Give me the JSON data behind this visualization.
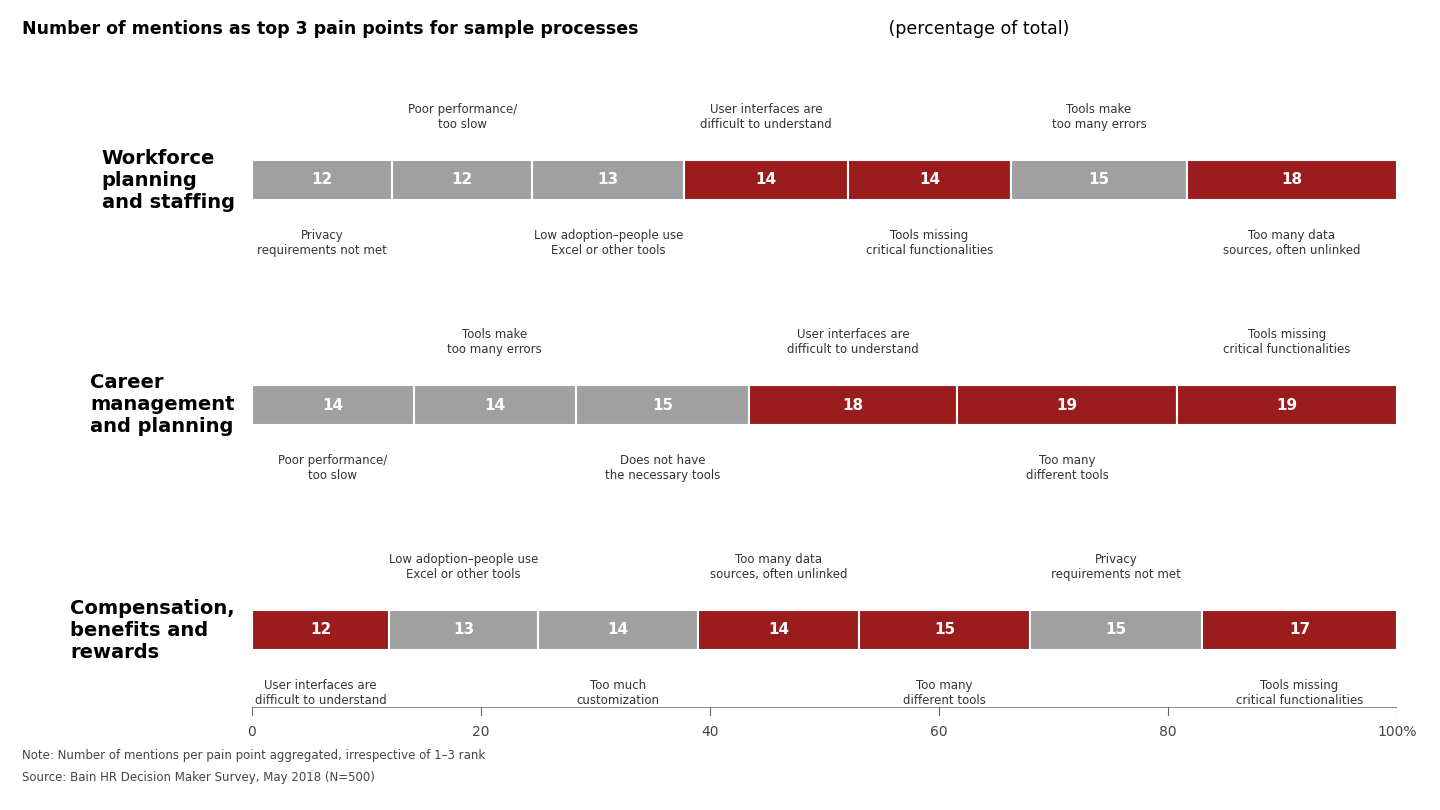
{
  "title_bold": "Number of mentions as top 3 pain points for sample processes",
  "title_normal": " (percentage of total)",
  "note": "Note: Number of mentions per pain point aggregated, irrespective of 1–3 rank",
  "source": "Source: Bain HR Decision Maker Survey, May 2018 (N=500)",
  "background_color": "#ffffff",
  "gray_color": "#a0a0a0",
  "red_color": "#9b1c1c",
  "text_color_light": "#ffffff",
  "rows": [
    {
      "label": "Workforce\nplanning\nand staffing",
      "segments": [
        {
          "value": 12,
          "color": "gray",
          "above_label": "",
          "below_label": "Privacy\nrequirements not met"
        },
        {
          "value": 12,
          "color": "gray",
          "above_label": "Poor performance/\ntoo slow",
          "below_label": ""
        },
        {
          "value": 13,
          "color": "gray",
          "above_label": "",
          "below_label": "Low adoption–people use\nExcel or other tools"
        },
        {
          "value": 14,
          "color": "red",
          "above_label": "User interfaces are\ndifficult to understand",
          "below_label": ""
        },
        {
          "value": 14,
          "color": "red",
          "above_label": "",
          "below_label": "Tools missing\ncritical functionalities"
        },
        {
          "value": 15,
          "color": "gray",
          "above_label": "Tools make\ntoo many errors",
          "below_label": ""
        },
        {
          "value": 18,
          "color": "red",
          "above_label": "",
          "below_label": "Too many data\nsources, often unlinked"
        }
      ]
    },
    {
      "label": "Career\nmanagement\nand planning",
      "segments": [
        {
          "value": 14,
          "color": "gray",
          "above_label": "",
          "below_label": "Poor performance/\ntoo slow"
        },
        {
          "value": 14,
          "color": "gray",
          "above_label": "Tools make\ntoo many errors",
          "below_label": ""
        },
        {
          "value": 15,
          "color": "gray",
          "above_label": "",
          "below_label": "Does not have\nthe necessary tools"
        },
        {
          "value": 18,
          "color": "red",
          "above_label": "User interfaces are\ndifficult to understand",
          "below_label": ""
        },
        {
          "value": 19,
          "color": "red",
          "above_label": "",
          "below_label": "Too many\ndifferent tools"
        },
        {
          "value": 19,
          "color": "red",
          "above_label": "Tools missing\ncritical functionalities",
          "below_label": ""
        }
      ]
    },
    {
      "label": "Compensation,\nbenefits and\nrewards",
      "segments": [
        {
          "value": 12,
          "color": "red",
          "above_label": "",
          "below_label": "User interfaces are\ndifficult to understand"
        },
        {
          "value": 13,
          "color": "gray",
          "above_label": "Low adoption–people use\nExcel or other tools",
          "below_label": ""
        },
        {
          "value": 14,
          "color": "gray",
          "above_label": "",
          "below_label": "Too much\ncustomization"
        },
        {
          "value": 14,
          "color": "red",
          "above_label": "Too many data\nsources, often unlinked",
          "below_label": ""
        },
        {
          "value": 15,
          "color": "red",
          "above_label": "",
          "below_label": "Too many\ndifferent tools"
        },
        {
          "value": 15,
          "color": "gray",
          "above_label": "Privacy\nrequirements not met",
          "below_label": ""
        },
        {
          "value": 17,
          "color": "red",
          "above_label": "",
          "below_label": "Tools missing\ncritical functionalities"
        }
      ]
    }
  ],
  "x_ticks": [
    0,
    20,
    40,
    60,
    80,
    100
  ],
  "x_tick_labels": [
    "0",
    "20",
    "40",
    "60",
    "80",
    "100%"
  ]
}
